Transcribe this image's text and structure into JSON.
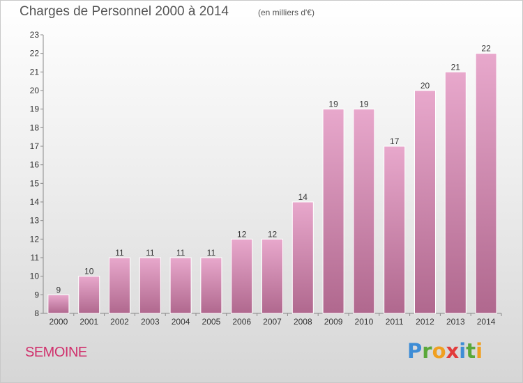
{
  "title": "Charges de Personnel 2000 à 2014",
  "subtitle": "(en milliers d'€)",
  "commune": "SEMOINE",
  "logo": {
    "text": "Proxiti",
    "letters": [
      {
        "ch": "P",
        "color": "#3e8dd6"
      },
      {
        "ch": "r",
        "color": "#5aa83a"
      },
      {
        "ch": "o",
        "color": "#f0a021"
      },
      {
        "ch": "x",
        "color": "#e23c3c"
      },
      {
        "ch": "i",
        "color": "#3e8dd6"
      },
      {
        "ch": "t",
        "color": "#5aa83a"
      },
      {
        "ch": "i",
        "color": "#f0a021"
      }
    ]
  },
  "colors": {
    "bar_top": "#e8a8cc",
    "bar_bottom": "#b0688e",
    "axis": "#888888"
  },
  "chart_data": {
    "type": "bar",
    "title": "Charges de Personnel 2000 à 2014",
    "subtitle": "(en milliers d'€)",
    "categories": [
      "2000",
      "2001",
      "2002",
      "2003",
      "2004",
      "2005",
      "2006",
      "2007",
      "2008",
      "2009",
      "2010",
      "2011",
      "2012",
      "2013",
      "2014"
    ],
    "values": [
      9,
      10,
      11,
      11,
      11,
      11,
      12,
      12,
      14,
      19,
      19,
      17,
      20,
      21,
      22
    ],
    "ylim": [
      8,
      23
    ],
    "yticks": [
      8,
      9,
      10,
      11,
      12,
      13,
      14,
      15,
      16,
      17,
      18,
      19,
      20,
      21,
      22,
      23
    ],
    "xlabel": "",
    "ylabel": "",
    "grid": false,
    "data_labels": true
  }
}
